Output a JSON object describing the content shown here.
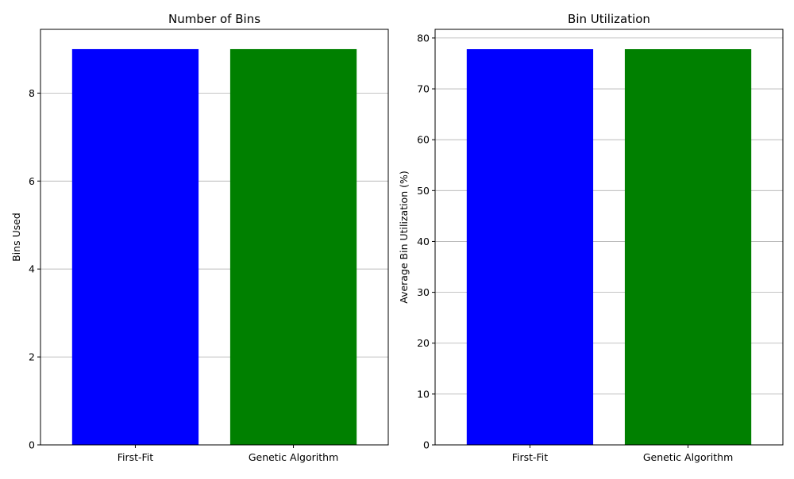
{
  "chart_data": [
    {
      "type": "bar",
      "title": "Number of Bins",
      "xlabel": "",
      "ylabel": "Bins Used",
      "categories": [
        "First-Fit",
        "Genetic Algorithm"
      ],
      "values": [
        9,
        9
      ],
      "colors": [
        "#0000ff",
        "#008000"
      ],
      "ylim": [
        0,
        9.45
      ],
      "yticks": [
        0,
        2,
        4,
        6,
        8
      ],
      "grid": "y"
    },
    {
      "type": "bar",
      "title": "Bin Utilization",
      "xlabel": "",
      "ylabel": "Average Bin Utilization (%)",
      "categories": [
        "First-Fit",
        "Genetic Algorithm"
      ],
      "values": [
        77.8,
        77.8
      ],
      "colors": [
        "#0000ff",
        "#008000"
      ],
      "ylim": [
        0,
        81.7
      ],
      "yticks": [
        0,
        10,
        20,
        30,
        40,
        50,
        60,
        70,
        80
      ],
      "grid": "y"
    }
  ]
}
